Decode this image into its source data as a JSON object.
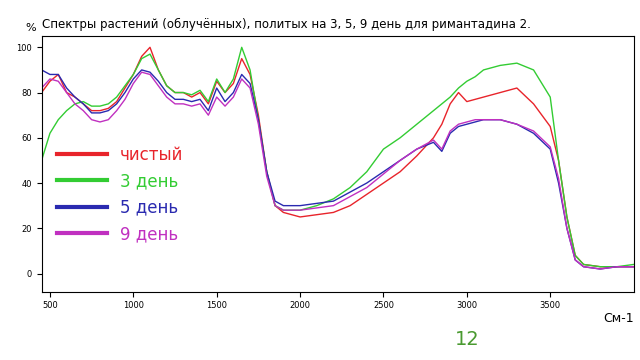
{
  "chart_data": {
    "type": "line",
    "title": "Спектры растений (облучённых), политых на 3, 5, 9 день для римантадина 2.",
    "x_label": "См-1",
    "y_label": "%",
    "page_number": "12",
    "x": [
      450,
      500,
      550,
      600,
      650,
      700,
      750,
      800,
      850,
      900,
      950,
      1000,
      1050,
      1100,
      1150,
      1200,
      1250,
      1300,
      1350,
      1400,
      1450,
      1500,
      1550,
      1600,
      1650,
      1700,
      1750,
      1800,
      1850,
      1900,
      2000,
      2100,
      2200,
      2300,
      2400,
      2500,
      2600,
      2700,
      2800,
      2850,
      2900,
      2950,
      3000,
      3050,
      3100,
      3200,
      3300,
      3400,
      3500,
      3550,
      3600,
      3650,
      3700,
      3800,
      3900,
      4000
    ],
    "series": [
      {
        "name": "чистый",
        "color": "#e8242b",
        "values": [
          80,
          85,
          88,
          80,
          78,
          75,
          72,
          72,
          73,
          76,
          82,
          88,
          96,
          100,
          90,
          83,
          80,
          80,
          78,
          80,
          75,
          85,
          80,
          84,
          95,
          88,
          70,
          45,
          30,
          27,
          25,
          26,
          27,
          30,
          35,
          40,
          45,
          52,
          60,
          66,
          75,
          80,
          76,
          77,
          78,
          80,
          82,
          75,
          65,
          50,
          25,
          8,
          4,
          3,
          3,
          3
        ]
      },
      {
        "name": "3 день",
        "color": "#33cc33",
        "values": [
          50,
          62,
          68,
          72,
          75,
          76,
          74,
          74,
          75,
          78,
          83,
          88,
          95,
          97,
          90,
          83,
          80,
          80,
          79,
          81,
          76,
          86,
          80,
          86,
          100,
          90,
          68,
          45,
          30,
          28,
          28,
          30,
          33,
          38,
          45,
          55,
          60,
          66,
          72,
          75,
          78,
          82,
          85,
          87,
          90,
          92,
          93,
          90,
          78,
          50,
          25,
          8,
          4,
          3,
          3,
          4
        ]
      },
      {
        "name": "5 день",
        "color": "#2a2ab0",
        "values": [
          90,
          88,
          88,
          82,
          78,
          75,
          71,
          71,
          72,
          75,
          80,
          86,
          90,
          89,
          85,
          80,
          77,
          77,
          76,
          77,
          72,
          82,
          76,
          80,
          88,
          84,
          68,
          45,
          32,
          30,
          30,
          31,
          32,
          36,
          40,
          45,
          50,
          55,
          58,
          54,
          62,
          65,
          66,
          67,
          68,
          68,
          66,
          62,
          55,
          40,
          20,
          6,
          3,
          2,
          3,
          3
        ]
      },
      {
        "name": "9 день",
        "color": "#c030c0",
        "values": [
          82,
          86,
          85,
          80,
          75,
          72,
          68,
          67,
          68,
          72,
          77,
          84,
          89,
          88,
          83,
          78,
          75,
          75,
          74,
          75,
          70,
          78,
          74,
          78,
          86,
          82,
          66,
          43,
          30,
          28,
          28,
          29,
          30,
          34,
          38,
          44,
          50,
          55,
          59,
          55,
          63,
          66,
          67,
          68,
          68,
          68,
          66,
          63,
          56,
          42,
          20,
          6,
          3,
          2,
          3,
          3
        ]
      }
    ],
    "xlim": [
      450,
      4000
    ],
    "xticks": [
      500,
      1000,
      1500,
      2000,
      2500,
      3000,
      3500
    ],
    "ylim": [
      -8,
      105
    ],
    "yticks": [
      0,
      20,
      40,
      60,
      80,
      100
    ],
    "grid": false,
    "legend": "center left"
  }
}
